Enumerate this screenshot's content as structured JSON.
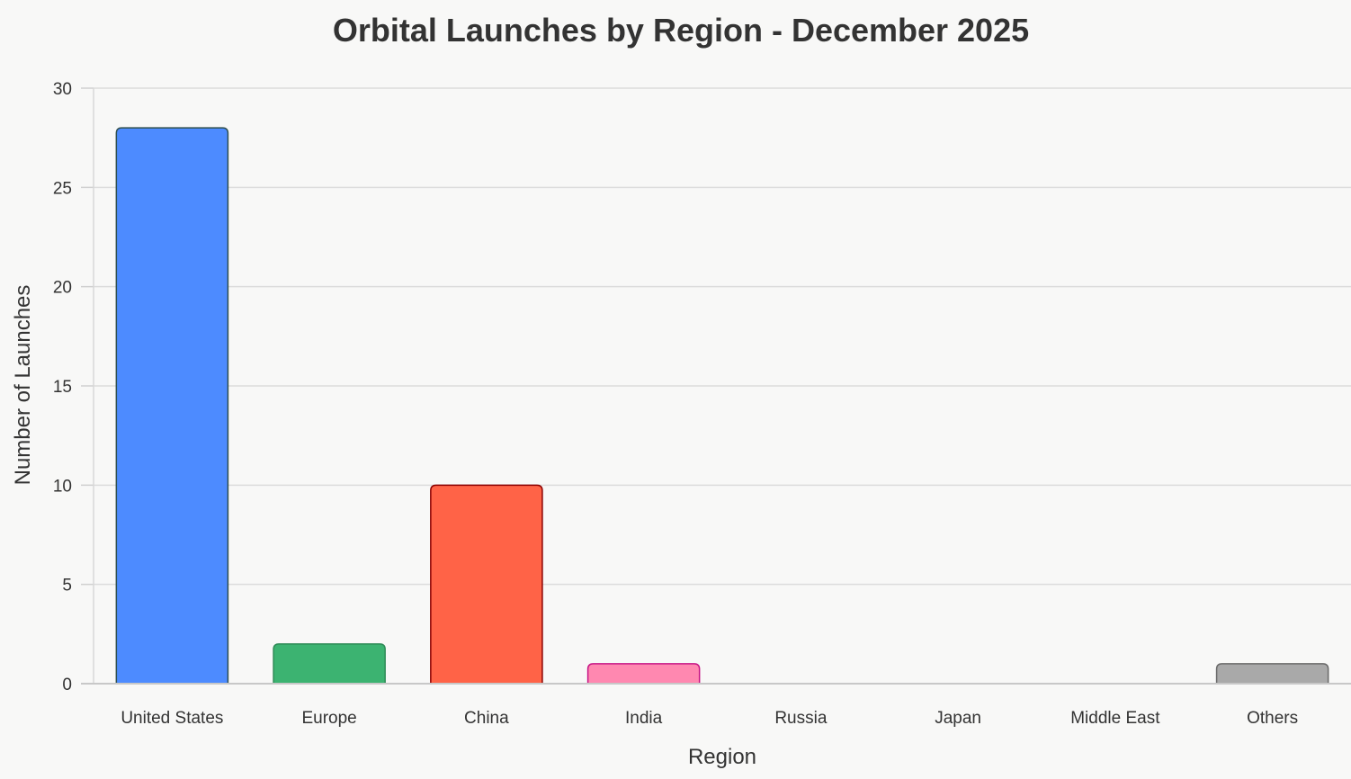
{
  "chart_data": {
    "type": "bar",
    "title": "Orbital Launches by Region - December 2025",
    "xlabel": "Region",
    "ylabel": "Number of Launches",
    "ylim": [
      0,
      30
    ],
    "yticks": [
      0,
      5,
      10,
      15,
      20,
      25,
      30
    ],
    "grid": true,
    "categories": [
      "United States",
      "Europe",
      "China",
      "India",
      "Russia",
      "Japan",
      "Middle East",
      "Others"
    ],
    "values": [
      28,
      2,
      10,
      1,
      0,
      0,
      0,
      1
    ],
    "colors": [
      "#4d8bff",
      "#3cb371",
      "#ff6347",
      "#ff88b0",
      "#cccccc",
      "#cccccc",
      "#cccccc",
      "#a9a9a9"
    ],
    "border_colors": [
      "#2f4f4f",
      "#2e8b57",
      "#8b0000",
      "#c71585",
      "#999999",
      "#999999",
      "#999999",
      "#696969"
    ]
  }
}
